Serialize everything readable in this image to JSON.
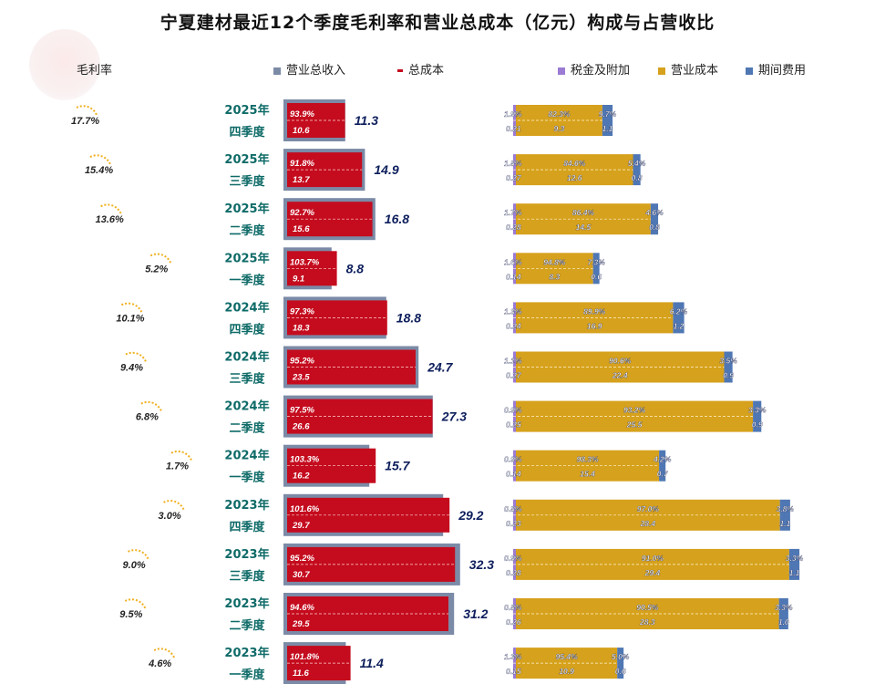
{
  "title": "宁夏建材最近12个季度毛利率和营业总成本（亿元）构成与占营收比",
  "legend": {
    "margin_label": "毛利率",
    "revenue": "营业总收入",
    "total_cost": "总成本",
    "tax": "税金及附加",
    "op_cost": "营业成本",
    "period_exp": "期间费用"
  },
  "colors": {
    "revenue": "#7b8aa6",
    "total_cost": "#c40c1e",
    "tax": "#9b7bd4",
    "op_cost": "#d6a11c",
    "period_exp": "#4f77b4",
    "year_text": "#0f6b68",
    "value_text": "#0d1e5c",
    "margin_text": "#222222"
  },
  "chart_data": {
    "type": "bar",
    "categories": [
      {
        "year": "2025年",
        "quarter": "四季度"
      },
      {
        "year": "2025年",
        "quarter": "三季度"
      },
      {
        "year": "2025年",
        "quarter": "二季度"
      },
      {
        "year": "2025年",
        "quarter": "一季度"
      },
      {
        "year": "2024年",
        "quarter": "四季度"
      },
      {
        "year": "2024年",
        "quarter": "三季度"
      },
      {
        "year": "2024年",
        "quarter": "二季度"
      },
      {
        "year": "2024年",
        "quarter": "一季度"
      },
      {
        "year": "2023年",
        "quarter": "四季度"
      },
      {
        "year": "2023年",
        "quarter": "三季度"
      },
      {
        "year": "2023年",
        "quarter": "二季度"
      },
      {
        "year": "2023年",
        "quarter": "一季度"
      }
    ],
    "gross_margin": [
      "17.7%",
      "15.4%",
      "13.6%",
      "5.2%",
      "10.1%",
      "9.4%",
      "6.8%",
      "1.7%",
      "3.0%",
      "9.0%",
      "9.5%",
      "4.6%"
    ],
    "revenue": [
      "11.3",
      "14.9",
      "16.8",
      "8.8",
      "18.8",
      "24.7",
      "27.3",
      "15.7",
      "29.2",
      "32.3",
      "31.2",
      "11.4"
    ],
    "total_cost": [
      "10.6",
      "13.7",
      "15.6",
      "9.1",
      "18.3",
      "23.5",
      "26.6",
      "16.2",
      "29.7",
      "30.7",
      "29.5",
      "11.6"
    ],
    "total_cost_pct": [
      "93.9%",
      "91.8%",
      "92.7%",
      "103.7%",
      "97.3%",
      "95.2%",
      "97.5%",
      "103.3%",
      "101.6%",
      "95.2%",
      "94.6%",
      "101.8%"
    ],
    "tax": [
      "0.21",
      "0.27",
      "0.28",
      "0.14",
      "0.24",
      "0.27",
      "0.25",
      "0.14",
      "0.23",
      "0.28",
      "0.26",
      "0.15"
    ],
    "tax_pct": [
      "1.9%",
      "1.8%",
      "1.7%",
      "1.6%",
      "1.3%",
      "1.1%",
      "0.9%",
      "0.9%",
      "0.8%",
      "0.9%",
      "0.8%",
      "1.3%"
    ],
    "op_cost": [
      "9.3",
      "12.6",
      "14.5",
      "8.3",
      "16.9",
      "22.4",
      "25.5",
      "15.4",
      "28.4",
      "29.4",
      "28.3",
      "10.9"
    ],
    "op_cost_pct": [
      "82.3%",
      "84.6%",
      "86.4%",
      "94.8%",
      "89.9%",
      "90.6%",
      "93.2%",
      "98.3%",
      "97.0%",
      "91.0%",
      "90.5%",
      "95.4%"
    ],
    "period_exp": [
      "1.1",
      "0.8",
      "0.8",
      "0.6",
      "1.2",
      "0.9",
      "0.9",
      "0.7",
      "1.1",
      "1.1",
      "1.0",
      "0.6"
    ],
    "period_exp_pct": [
      "9.7%",
      "5.4%",
      "4.6%",
      "7.3%",
      "6.2%",
      "3.5%",
      "3.3%",
      "4.2%",
      "3.8%",
      "3.3%",
      "3.3%",
      "5.0%"
    ]
  }
}
